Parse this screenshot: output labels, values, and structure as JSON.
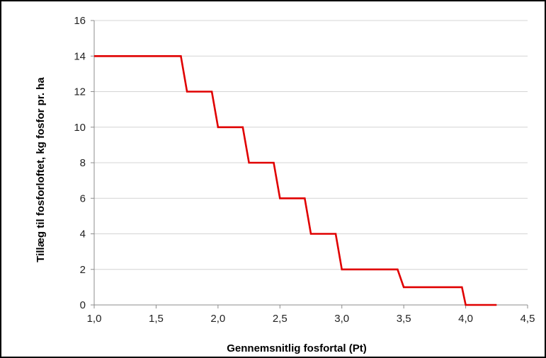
{
  "chart_data": {
    "type": "line",
    "title": "",
    "xlabel": "Gennemsnitlig fosfortal (Pt)",
    "ylabel": "Tillæg til fosforloftet, kg fosfor pr. ha",
    "xlim": [
      1.0,
      4.5
    ],
    "ylim": [
      0,
      16
    ],
    "x_ticks": [
      1.0,
      1.5,
      2.0,
      2.5,
      3.0,
      3.5,
      4.0,
      4.5
    ],
    "x_tick_labels": [
      "1,0",
      "1,5",
      "2,0",
      "2,5",
      "3,0",
      "3,5",
      "4,0",
      "4,5"
    ],
    "y_ticks": [
      0,
      2,
      4,
      6,
      8,
      10,
      12,
      14,
      16
    ],
    "y_tick_labels": [
      "0",
      "2",
      "4",
      "6",
      "8",
      "10",
      "12",
      "14",
      "16"
    ],
    "grid": "horizontal",
    "legend": "none",
    "series": [
      {
        "color": "#e00000",
        "points": [
          [
            1.0,
            14
          ],
          [
            1.7,
            14
          ],
          [
            1.75,
            12
          ],
          [
            1.95,
            12
          ],
          [
            2.0,
            10
          ],
          [
            2.2,
            10
          ],
          [
            2.25,
            8
          ],
          [
            2.45,
            8
          ],
          [
            2.5,
            6
          ],
          [
            2.7,
            6
          ],
          [
            2.75,
            4
          ],
          [
            2.95,
            4
          ],
          [
            3.0,
            2
          ],
          [
            3.45,
            2
          ],
          [
            3.5,
            1
          ],
          [
            3.97,
            1
          ],
          [
            4.0,
            0
          ],
          [
            4.25,
            0
          ]
        ]
      }
    ]
  }
}
